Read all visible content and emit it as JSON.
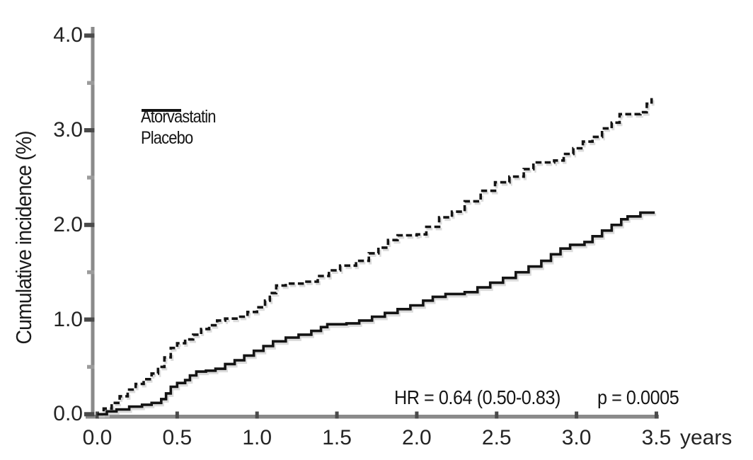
{
  "figure": {
    "ylabel": "Cumulative incidence (%)",
    "x_unit": "years",
    "annotation": {
      "hr": "HR = 0.64 (0.50-0.83)",
      "p": "p = 0.0005"
    }
  },
  "chart_data": {
    "type": "line",
    "step": true,
    "title": "",
    "xlabel": "years",
    "ylabel": "Cumulative incidence (%)",
    "xlim": [
      0,
      3.5
    ],
    "ylim": [
      0,
      4.0
    ],
    "grid": false,
    "legend_position": "upper-left-inside",
    "xticks": [
      0,
      0.5,
      1,
      1.5,
      2,
      2.5,
      3,
      3.5
    ],
    "xtick_labels": [
      "0.0",
      "0.5",
      "1.0",
      "1.5",
      "2.0",
      "2.5",
      "3.0",
      "3.5"
    ],
    "yticks_major": [
      0,
      1,
      2,
      3,
      4
    ],
    "ytick_labels": [
      "0.0",
      "1.0",
      "2.0",
      "3.0",
      "4.0"
    ],
    "yticks_minor": [
      0.5,
      1.5,
      2.5,
      3.5
    ],
    "annotations": [
      "HR = 0.64 (0.50-0.83)",
      "p = 0.0005"
    ],
    "series": [
      {
        "name": "Atorvastatin",
        "line_style": "solid",
        "color": "#141414",
        "x": [
          0.0,
          0.06,
          0.12,
          0.2,
          0.28,
          0.34,
          0.4,
          0.43,
          0.46,
          0.5,
          0.55,
          0.58,
          0.62,
          0.68,
          0.74,
          0.8,
          0.86,
          0.92,
          0.98,
          1.04,
          1.1,
          1.18,
          1.26,
          1.34,
          1.4,
          1.44,
          1.56,
          1.64,
          1.72,
          1.8,
          1.88,
          1.96,
          2.04,
          2.1,
          2.18,
          2.3,
          2.38,
          2.46,
          2.54,
          2.62,
          2.7,
          2.78,
          2.84,
          2.9,
          2.96,
          3.05,
          3.1,
          3.16,
          3.22,
          3.28,
          3.32,
          3.38,
          3.4,
          3.49
        ],
        "y": [
          0.0,
          0.03,
          0.05,
          0.08,
          0.1,
          0.12,
          0.16,
          0.22,
          0.29,
          0.33,
          0.36,
          0.41,
          0.45,
          0.46,
          0.48,
          0.53,
          0.57,
          0.62,
          0.67,
          0.72,
          0.77,
          0.81,
          0.84,
          0.88,
          0.92,
          0.95,
          0.96,
          0.99,
          1.03,
          1.07,
          1.11,
          1.15,
          1.2,
          1.24,
          1.27,
          1.29,
          1.34,
          1.39,
          1.44,
          1.5,
          1.56,
          1.62,
          1.69,
          1.75,
          1.79,
          1.82,
          1.88,
          1.94,
          2.0,
          2.06,
          2.09,
          2.09,
          2.13,
          2.13
        ]
      },
      {
        "name": "Placebo",
        "line_style": "dashed",
        "color": "#141414",
        "x": [
          0.0,
          0.04,
          0.09,
          0.14,
          0.19,
          0.24,
          0.29,
          0.34,
          0.38,
          0.42,
          0.46,
          0.5,
          0.55,
          0.6,
          0.65,
          0.7,
          0.75,
          0.8,
          0.88,
          0.94,
          1.0,
          1.05,
          1.08,
          1.12,
          1.18,
          1.3,
          1.38,
          1.45,
          1.52,
          1.62,
          1.7,
          1.76,
          1.82,
          1.88,
          2.0,
          2.06,
          2.14,
          2.22,
          2.3,
          2.4,
          2.49,
          2.58,
          2.67,
          2.73,
          2.86,
          2.92,
          2.98,
          3.04,
          3.1,
          3.16,
          3.22,
          3.27,
          3.4,
          3.44,
          3.47
        ],
        "y": [
          0.0,
          0.06,
          0.12,
          0.19,
          0.26,
          0.32,
          0.37,
          0.43,
          0.5,
          0.6,
          0.7,
          0.75,
          0.79,
          0.84,
          0.9,
          0.94,
          0.99,
          1.01,
          1.03,
          1.08,
          1.13,
          1.2,
          1.28,
          1.36,
          1.38,
          1.4,
          1.46,
          1.52,
          1.57,
          1.62,
          1.7,
          1.76,
          1.84,
          1.89,
          1.9,
          1.98,
          2.08,
          2.14,
          2.25,
          2.36,
          2.45,
          2.51,
          2.59,
          2.66,
          2.68,
          2.75,
          2.81,
          2.88,
          2.93,
          3.02,
          3.08,
          3.17,
          3.19,
          3.28,
          3.34
        ]
      }
    ]
  },
  "colors": {
    "curve": "#141414",
    "curve_shadow": "#c9c9c9",
    "axis_line": "#8a8a8a",
    "tick_major": "#4a4a4a",
    "tick_minor": "#9c9c9c",
    "text": "#242424"
  }
}
